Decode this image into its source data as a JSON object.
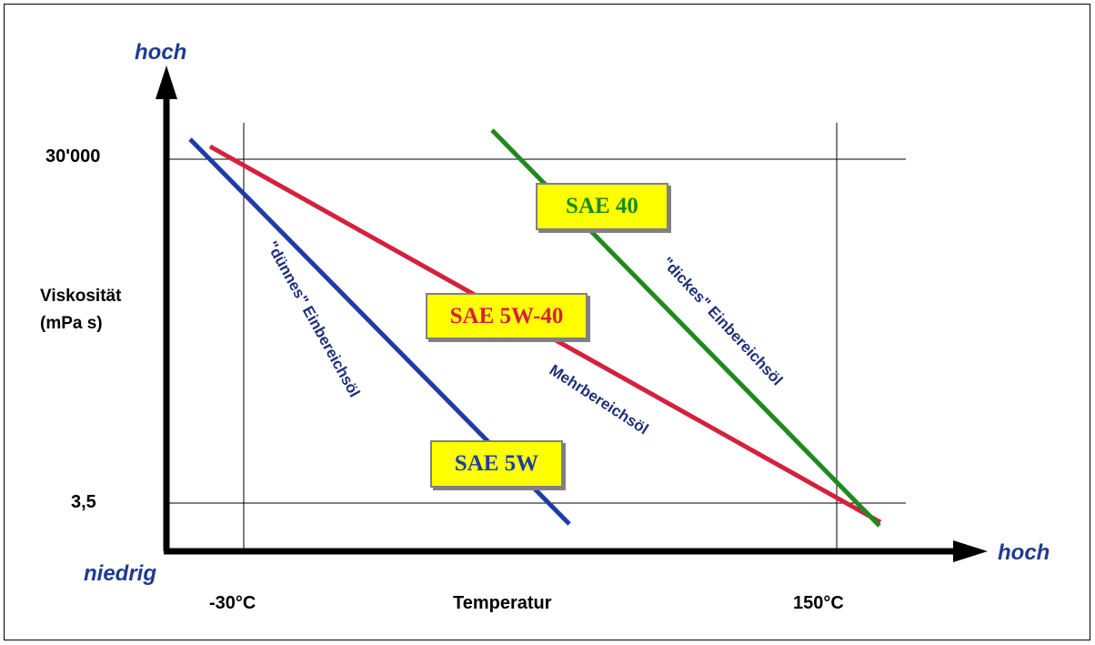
{
  "chart_data": {
    "type": "line",
    "xlabel": "Temperatur",
    "ylabel": "Viskosität (mPa s)",
    "ylabel_lines": [
      "Viskosität",
      "(mPa s)"
    ],
    "x_ticks": [
      "-30°C",
      "150°C"
    ],
    "y_ticks": [
      "30'000",
      "3,5"
    ],
    "x_high_label": "hoch",
    "y_high_label": "hoch",
    "origin_low_label": "niedrig",
    "grid": true,
    "series": [
      {
        "name": "SAE 5W",
        "color": "#1f3ca6",
        "description": "\"dünnes\" Einbereichsöl"
      },
      {
        "name": "SAE 5W-40",
        "color": "#d4213d",
        "description": "Mehrbereichsöl"
      },
      {
        "name": "SAE 40",
        "color": "#1f8a1f",
        "description": "\"dickes\" Einbereichsöl"
      }
    ]
  }
}
